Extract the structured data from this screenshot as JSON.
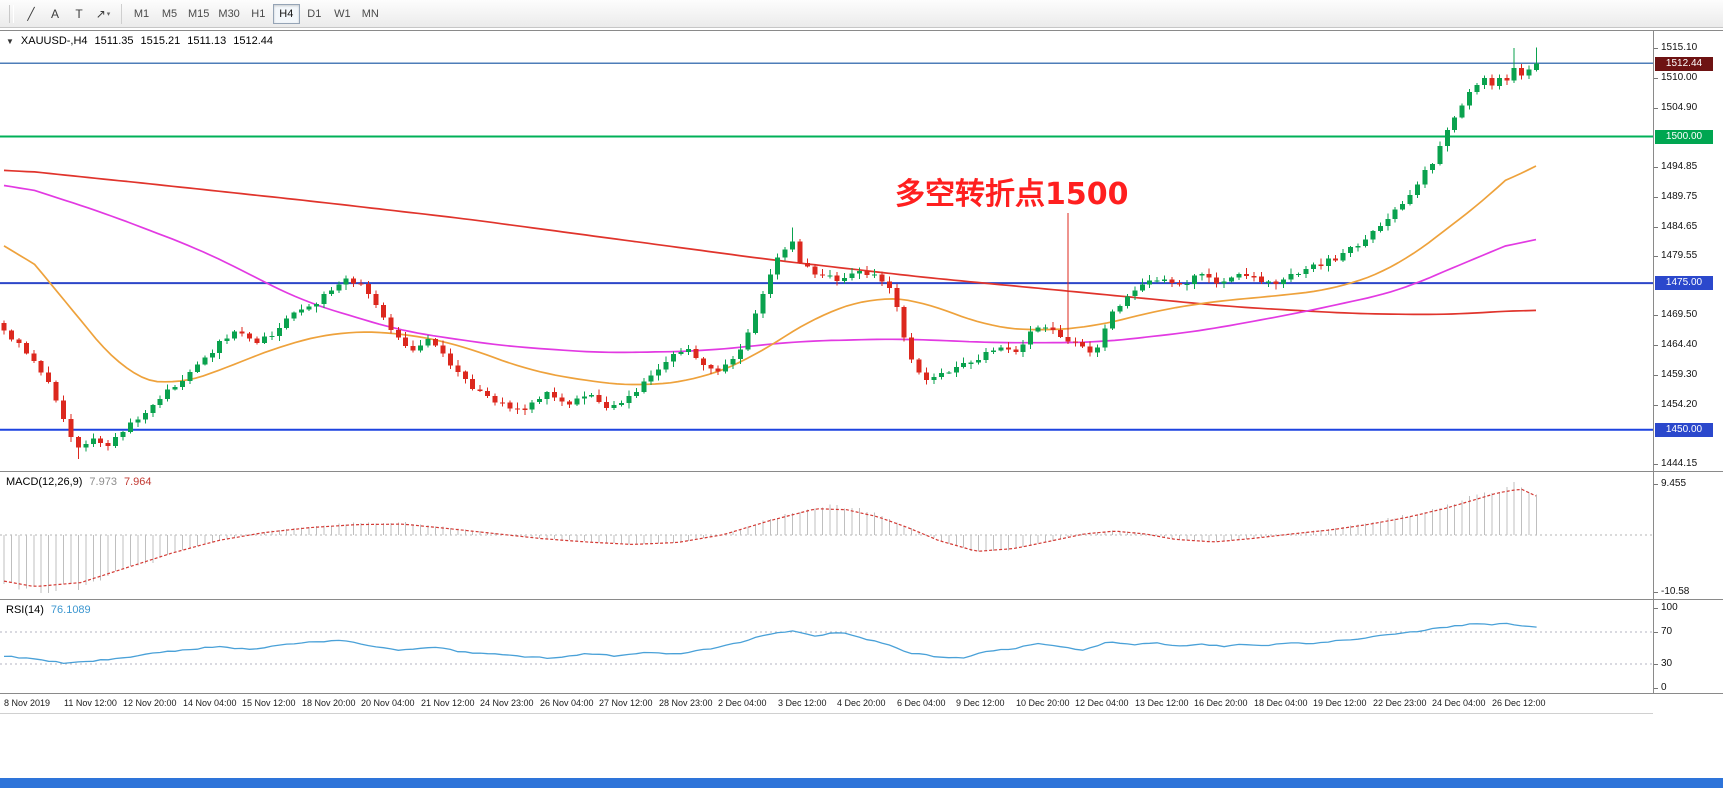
{
  "toolbar": {
    "tools": [
      {
        "name": "trendline",
        "glyph": "╱"
      },
      {
        "name": "text",
        "glyph": "A"
      },
      {
        "name": "text-label",
        "glyph": "T"
      },
      {
        "name": "arrows",
        "glyph": "↗",
        "dropdown": true
      }
    ],
    "timeframes": [
      {
        "label": "M1"
      },
      {
        "label": "M5"
      },
      {
        "label": "M15"
      },
      {
        "label": "M30"
      },
      {
        "label": "H1"
      },
      {
        "label": "H4",
        "active": true
      },
      {
        "label": "D1"
      },
      {
        "label": "W1"
      },
      {
        "label": "MN"
      }
    ]
  },
  "chart_header": {
    "collapse_icon": "▼",
    "symbol_period": "XAUUSD-,H4",
    "open": "1511.35",
    "high": "1515.21",
    "low": "1511.13",
    "close": "1512.44"
  },
  "annotation": {
    "text": "多空转折点1500",
    "color": "#ff1f1f"
  },
  "taskbar": {
    "color": "#2e74d9"
  },
  "chart_data": {
    "type": "candlestick",
    "symbol": "XAUUSD-",
    "timeframe": "H4",
    "bars": 207,
    "current_bar": {
      "open": 1511.35,
      "high": 1515.21,
      "low": 1511.13,
      "close": 1512.44
    },
    "colors": {
      "up": "#0aa24e",
      "down": "#dc281e"
    },
    "y_axis": {
      "ticks": [
        {
          "label": "1515.10",
          "price": 1515.1
        },
        {
          "label": "1510.00",
          "price": 1510.0
        },
        {
          "label": "1504.90",
          "price": 1504.9
        },
        {
          "label": "1494.85",
          "price": 1494.85
        },
        {
          "label": "1489.75",
          "price": 1489.75
        },
        {
          "label": "1484.65",
          "price": 1484.65
        },
        {
          "label": "1479.55",
          "price": 1479.55
        },
        {
          "label": "1469.50",
          "price": 1469.5
        },
        {
          "label": "1464.40",
          "price": 1464.4
        },
        {
          "label": "1459.30",
          "price": 1459.3
        },
        {
          "label": "1454.20",
          "price": 1454.2
        },
        {
          "label": "1444.15",
          "price": 1444.15
        }
      ],
      "tags": [
        {
          "label": "1512.44",
          "price": 1512.44,
          "bg": "#6e1313"
        },
        {
          "label": "1500.00",
          "price": 1500.0,
          "bg": "#00a651"
        },
        {
          "label": "1475.00",
          "price": 1475.0,
          "bg": "#2b48cc"
        },
        {
          "label": "1450.00",
          "price": 1450.0,
          "bg": "#2b48cc"
        }
      ]
    },
    "hlines": [
      {
        "price": 1512.5,
        "color": "#4e7db8",
        "width": 1.5
      },
      {
        "price": 1500.0,
        "color": "#00b058",
        "width": 2
      },
      {
        "price": 1475.0,
        "color": "#2c46c8",
        "width": 2
      },
      {
        "price": 1450.0,
        "color": "#1d43e0",
        "width": 2
      }
    ],
    "x_axis": {
      "labels": [
        "8 Nov 2019",
        "11 Nov 12:00",
        "12 Nov 20:00",
        "14 Nov 04:00",
        "15 Nov 12:00",
        "18 Nov 20:00",
        "20 Nov 04:00",
        "21 Nov 12:00",
        "24 Nov 23:00",
        "26 Nov 04:00",
        "27 Nov 12:00",
        "28 Nov 23:00",
        "2 Dec 04:00",
        "3 Dec 12:00",
        "4 Dec 20:00",
        "6 Dec 04:00",
        "9 Dec 12:00",
        "10 Dec 20:00",
        "12 Dec 04:00",
        "13 Dec 12:00",
        "16 Dec 20:00",
        "18 Dec 04:00",
        "19 Dec 12:00",
        "22 Dec 23:00",
        "24 Dec 04:00",
        "26 Dec 12:00"
      ]
    },
    "close_path": [
      [
        0,
        1467
      ],
      [
        0.019,
        1462
      ],
      [
        0.032,
        1457
      ],
      [
        0.042,
        1449
      ],
      [
        0.05,
        1446.5
      ],
      [
        0.06,
        1448.5
      ],
      [
        0.068,
        1446.8
      ],
      [
        0.078,
        1450
      ],
      [
        0.09,
        1452.5
      ],
      [
        0.105,
        1456
      ],
      [
        0.123,
        1460
      ],
      [
        0.14,
        1464.5
      ],
      [
        0.152,
        1467.5
      ],
      [
        0.163,
        1464.8
      ],
      [
        0.175,
        1466.5
      ],
      [
        0.188,
        1470
      ],
      [
        0.205,
        1472
      ],
      [
        0.224,
        1476
      ],
      [
        0.235,
        1474
      ],
      [
        0.253,
        1467
      ],
      [
        0.266,
        1463.5
      ],
      [
        0.279,
        1465.5
      ],
      [
        0.292,
        1461
      ],
      [
        0.305,
        1457.5
      ],
      [
        0.318,
        1455
      ],
      [
        0.338,
        1453.5
      ],
      [
        0.355,
        1456.5
      ],
      [
        0.37,
        1454.5
      ],
      [
        0.383,
        1456
      ],
      [
        0.396,
        1453.5
      ],
      [
        0.41,
        1456
      ],
      [
        0.422,
        1459
      ],
      [
        0.435,
        1462
      ],
      [
        0.445,
        1464.5
      ],
      [
        0.455,
        1461.5
      ],
      [
        0.468,
        1460
      ],
      [
        0.48,
        1463
      ],
      [
        0.49,
        1470
      ],
      [
        0.5,
        1476.5
      ],
      [
        0.508,
        1480.5
      ],
      [
        0.513,
        1482.5
      ],
      [
        0.52,
        1478.5
      ],
      [
        0.532,
        1476.5
      ],
      [
        0.545,
        1475.5
      ],
      [
        0.558,
        1477
      ],
      [
        0.571,
        1476.5
      ],
      [
        0.582,
        1472
      ],
      [
        0.59,
        1462.5
      ],
      [
        0.601,
        1458.5
      ],
      [
        0.614,
        1459.5
      ],
      [
        0.623,
        1460.5
      ],
      [
        0.636,
        1462
      ],
      [
        0.649,
        1464.5
      ],
      [
        0.662,
        1463.5
      ],
      [
        0.675,
        1468
      ],
      [
        0.688,
        1466
      ],
      [
        0.702,
        1464.5
      ],
      [
        0.712,
        1462.5
      ],
      [
        0.721,
        1469
      ],
      [
        0.733,
        1472.5
      ],
      [
        0.74,
        1474.5
      ],
      [
        0.753,
        1476
      ],
      [
        0.766,
        1474.5
      ],
      [
        0.78,
        1476.5
      ],
      [
        0.792,
        1475
      ],
      [
        0.805,
        1477
      ],
      [
        0.818,
        1475.5
      ],
      [
        0.831,
        1474.8
      ],
      [
        0.845,
        1477
      ],
      [
        0.858,
        1478
      ],
      [
        0.87,
        1479.5
      ],
      [
        0.883,
        1481.5
      ],
      [
        0.896,
        1484
      ],
      [
        0.909,
        1487.5
      ],
      [
        0.922,
        1492
      ],
      [
        0.932,
        1495.5
      ],
      [
        0.94,
        1500
      ],
      [
        0.947,
        1503.5
      ],
      [
        0.953,
        1506
      ],
      [
        0.96,
        1508.5
      ],
      [
        0.966,
        1509.5
      ],
      [
        0.971,
        1508.5
      ],
      [
        0.976,
        1510.5
      ],
      [
        0.981,
        1509
      ],
      [
        0.986,
        1512.5
      ],
      [
        0.991,
        1510.5
      ],
      [
        0.996,
        1511.5
      ],
      [
        1,
        1512.44
      ]
    ],
    "spikes": [
      {
        "t": 0.05,
        "price": 1445.0
      },
      {
        "t": 0.513,
        "price": 1484.5
      },
      {
        "t": 0.695,
        "price": 1487.0
      },
      {
        "t": 0.984,
        "price": 1515.1
      }
    ],
    "moving_averages": [
      {
        "name": "ma-red-line",
        "color": "#e0342c",
        "path": [
          [
            0,
            1494.5
          ],
          [
            0.1,
            1491.8
          ],
          [
            0.2,
            1489
          ],
          [
            0.3,
            1486
          ],
          [
            0.4,
            1482.5
          ],
          [
            0.5,
            1479
          ],
          [
            0.6,
            1476
          ],
          [
            0.7,
            1473.5
          ],
          [
            0.8,
            1471
          ],
          [
            0.88,
            1469.8
          ],
          [
            0.94,
            1469.6
          ],
          [
            1,
            1470.5
          ]
        ]
      },
      {
        "name": "ma-magenta-line",
        "color": "#e23ae2",
        "path": [
          [
            0,
            1492.5
          ],
          [
            0.065,
            1487
          ],
          [
            0.13,
            1480.5
          ],
          [
            0.195,
            1471.9
          ],
          [
            0.26,
            1466.8
          ],
          [
            0.325,
            1464.3
          ],
          [
            0.39,
            1463.1
          ],
          [
            0.455,
            1463.4
          ],
          [
            0.52,
            1465.1
          ],
          [
            0.585,
            1465.5
          ],
          [
            0.65,
            1464.8
          ],
          [
            0.715,
            1464.9
          ],
          [
            0.78,
            1466.8
          ],
          [
            0.845,
            1469.9
          ],
          [
            0.91,
            1473.6
          ],
          [
            0.94,
            1477
          ],
          [
            0.975,
            1480.8
          ],
          [
            1,
            1483.5
          ]
        ]
      },
      {
        "name": "ma-orange-line",
        "color": "#eea23c",
        "path": [
          [
            0,
            1484.5
          ],
          [
            0.04,
            1471.9
          ],
          [
            0.08,
            1459.1
          ],
          [
            0.11,
            1457.4
          ],
          [
            0.14,
            1460
          ],
          [
            0.18,
            1464.3
          ],
          [
            0.22,
            1466.8
          ],
          [
            0.26,
            1466.5
          ],
          [
            0.3,
            1464.3
          ],
          [
            0.34,
            1460.3
          ],
          [
            0.38,
            1458.3
          ],
          [
            0.415,
            1457.4
          ],
          [
            0.455,
            1458.6
          ],
          [
            0.49,
            1462.5
          ],
          [
            0.53,
            1469.4
          ],
          [
            0.57,
            1472.8
          ],
          [
            0.6,
            1471.9
          ],
          [
            0.64,
            1467.7
          ],
          [
            0.675,
            1466.8
          ],
          [
            0.715,
            1467.7
          ],
          [
            0.75,
            1470.2
          ],
          [
            0.79,
            1471.9
          ],
          [
            0.83,
            1472.8
          ],
          [
            0.87,
            1474
          ],
          [
            0.91,
            1477.9
          ],
          [
            0.94,
            1483.9
          ],
          [
            0.97,
            1489.9
          ],
          [
            1,
            1497.5
          ]
        ]
      }
    ],
    "indicators": {
      "macd": {
        "label": "MACD(12,26,9)",
        "value_main": "7.973",
        "value_signal": "7.964",
        "histogram_color": "#bfbfbf",
        "signal_color": "#d43a34",
        "scale_ticks": [
          {
            "label": "9.455",
            "value": 9.455
          },
          {
            "label": "-10.58",
            "value": -10.58
          }
        ],
        "path": [
          [
            0,
            -9.2
          ],
          [
            0.02,
            -10.3
          ],
          [
            0.05,
            -9.5
          ],
          [
            0.08,
            -6.5
          ],
          [
            0.11,
            -3.5
          ],
          [
            0.14,
            -1
          ],
          [
            0.17,
            0.6
          ],
          [
            0.2,
            1.6
          ],
          [
            0.23,
            2.2
          ],
          [
            0.26,
            2.3
          ],
          [
            0.29,
            1.4
          ],
          [
            0.32,
            0.4
          ],
          [
            0.35,
            -0.6
          ],
          [
            0.38,
            -1.3
          ],
          [
            0.41,
            -1.8
          ],
          [
            0.44,
            -1.4
          ],
          [
            0.47,
            0.2
          ],
          [
            0.5,
            3
          ],
          [
            0.53,
            5.4
          ],
          [
            0.55,
            5.2
          ],
          [
            0.57,
            3.8
          ],
          [
            0.59,
            1.6
          ],
          [
            0.61,
            -1
          ],
          [
            0.635,
            -3.2
          ],
          [
            0.66,
            -2.6
          ],
          [
            0.685,
            -1
          ],
          [
            0.705,
            0.3
          ],
          [
            0.725,
            0.9
          ],
          [
            0.745,
            0.3
          ],
          [
            0.765,
            -0.8
          ],
          [
            0.79,
            -1.3
          ],
          [
            0.815,
            -0.6
          ],
          [
            0.84,
            0.3
          ],
          [
            0.865,
            1.1
          ],
          [
            0.89,
            2.2
          ],
          [
            0.915,
            3.6
          ],
          [
            0.94,
            5.4
          ],
          [
            0.96,
            7.2
          ],
          [
            0.975,
            8.6
          ],
          [
            0.99,
            9.4
          ],
          [
            1,
            7.973
          ]
        ]
      },
      "rsi": {
        "label": "RSI(14)",
        "value": "76.1089",
        "line_color": "#4aa1d8",
        "levels": [
          70,
          30
        ],
        "scale_ticks": [
          {
            "label": "100",
            "value": 100
          },
          {
            "label": "70",
            "value": 70
          },
          {
            "label": "30",
            "value": 30
          },
          {
            "label": "0",
            "value": 0
          }
        ],
        "path": [
          [
            0,
            40
          ],
          [
            0.02,
            36
          ],
          [
            0.04,
            31
          ],
          [
            0.06,
            34
          ],
          [
            0.08,
            38
          ],
          [
            0.1,
            44
          ],
          [
            0.12,
            48
          ],
          [
            0.14,
            52
          ],
          [
            0.16,
            48
          ],
          [
            0.18,
            54
          ],
          [
            0.2,
            57
          ],
          [
            0.22,
            60
          ],
          [
            0.24,
            52
          ],
          [
            0.26,
            47
          ],
          [
            0.28,
            51
          ],
          [
            0.3,
            45
          ],
          [
            0.32,
            42
          ],
          [
            0.34,
            39
          ],
          [
            0.36,
            37
          ],
          [
            0.38,
            43
          ],
          [
            0.4,
            40
          ],
          [
            0.42,
            45
          ],
          [
            0.44,
            42
          ],
          [
            0.46,
            49
          ],
          [
            0.48,
            57
          ],
          [
            0.5,
            68
          ],
          [
            0.515,
            72
          ],
          [
            0.53,
            65
          ],
          [
            0.545,
            70
          ],
          [
            0.56,
            62
          ],
          [
            0.575,
            55
          ],
          [
            0.59,
            44
          ],
          [
            0.61,
            39
          ],
          [
            0.625,
            37
          ],
          [
            0.64,
            45
          ],
          [
            0.66,
            50
          ],
          [
            0.675,
            55
          ],
          [
            0.69,
            51
          ],
          [
            0.705,
            47
          ],
          [
            0.72,
            58
          ],
          [
            0.735,
            54
          ],
          [
            0.75,
            57
          ],
          [
            0.765,
            52
          ],
          [
            0.78,
            55
          ],
          [
            0.795,
            52
          ],
          [
            0.81,
            55
          ],
          [
            0.825,
            53
          ],
          [
            0.84,
            57
          ],
          [
            0.855,
            55
          ],
          [
            0.87,
            59
          ],
          [
            0.885,
            62
          ],
          [
            0.9,
            66
          ],
          [
            0.915,
            69
          ],
          [
            0.93,
            73
          ],
          [
            0.945,
            77
          ],
          [
            0.96,
            81
          ],
          [
            0.97,
            79
          ],
          [
            0.98,
            81
          ],
          [
            0.99,
            77
          ],
          [
            1,
            76.1
          ]
        ]
      }
    }
  }
}
